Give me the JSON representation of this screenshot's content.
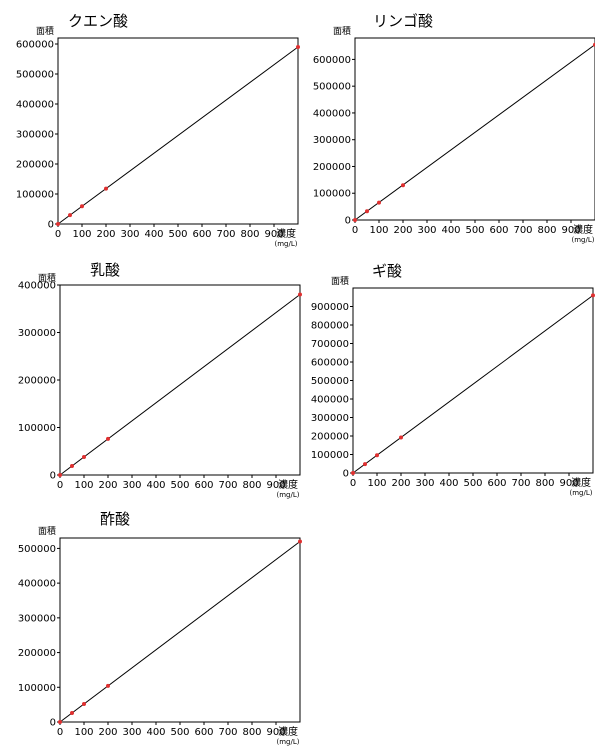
{
  "chart_data": [
    {
      "type": "scatter",
      "title": "クエン酸",
      "ylabel": "面積",
      "xlabel": "濃度",
      "xunit": "(mg/L)",
      "xlim": [
        0,
        1000
      ],
      "ylim": [
        0,
        620000
      ],
      "xticks": [
        0,
        100,
        200,
        300,
        400,
        500,
        600,
        700,
        800,
        900
      ],
      "yticks": [
        0,
        100000,
        200000,
        300000,
        400000,
        500000,
        600000
      ],
      "point_color": "#e03030",
      "line_color": "#000000",
      "series": [
        {
          "x": [
            0,
            50,
            100,
            200,
            1000
          ],
          "y": [
            0,
            29500,
            59000,
            118000,
            590000
          ]
        }
      ],
      "fit_line": {
        "x": [
          0,
          1000
        ],
        "y": [
          0,
          590000
        ]
      }
    },
    {
      "type": "scatter",
      "title": "リンゴ酸",
      "ylabel": "面積",
      "xlabel": "濃度",
      "xunit": "(mg/L)",
      "xlim": [
        0,
        1000
      ],
      "ylim": [
        0,
        680000
      ],
      "xticks": [
        0,
        100,
        200,
        300,
        400,
        500,
        600,
        700,
        800,
        900
      ],
      "yticks": [
        0,
        100000,
        200000,
        300000,
        400000,
        500000,
        600000
      ],
      "point_color": "#e03030",
      "line_color": "#000000",
      "series": [
        {
          "x": [
            0,
            50,
            100,
            200,
            1000
          ],
          "y": [
            0,
            32500,
            65000,
            130000,
            655000
          ]
        }
      ],
      "fit_line": {
        "x": [
          0,
          1000
        ],
        "y": [
          0,
          655000
        ]
      }
    },
    {
      "type": "scatter",
      "title": "乳酸",
      "ylabel": "面積",
      "xlabel": "濃度",
      "xunit": "(mg/L)",
      "xlim": [
        0,
        1000
      ],
      "ylim": [
        0,
        400000
      ],
      "xticks": [
        0,
        100,
        200,
        300,
        400,
        500,
        600,
        700,
        800,
        900
      ],
      "yticks": [
        0,
        100000,
        200000,
        300000,
        400000
      ],
      "point_color": "#e03030",
      "line_color": "#000000",
      "series": [
        {
          "x": [
            0,
            50,
            100,
            200,
            1000
          ],
          "y": [
            0,
            19000,
            38000,
            76000,
            380000
          ]
        }
      ],
      "fit_line": {
        "x": [
          0,
          1000
        ],
        "y": [
          0,
          380000
        ]
      }
    },
    {
      "type": "scatter",
      "title": "ギ酸",
      "ylabel": "面積",
      "xlabel": "濃度",
      "xunit": "(mg/L)",
      "xlim": [
        0,
        1000
      ],
      "ylim": [
        0,
        1000000
      ],
      "xticks": [
        0,
        100,
        200,
        300,
        400,
        500,
        600,
        700,
        800,
        900
      ],
      "yticks": [
        0,
        100000,
        200000,
        300000,
        400000,
        500000,
        600000,
        700000,
        800000,
        900000
      ],
      "point_color": "#e03030",
      "line_color": "#000000",
      "series": [
        {
          "x": [
            0,
            50,
            100,
            200,
            1000
          ],
          "y": [
            0,
            48000,
            96000,
            192000,
            960000
          ]
        }
      ],
      "fit_line": {
        "x": [
          0,
          1000
        ],
        "y": [
          0,
          960000
        ]
      }
    },
    {
      "type": "scatter",
      "title": "酢酸",
      "ylabel": "面積",
      "xlabel": "濃度",
      "xunit": "(mg/L)",
      "xlim": [
        0,
        1000
      ],
      "ylim": [
        0,
        530000
      ],
      "xticks": [
        0,
        100,
        200,
        300,
        400,
        500,
        600,
        700,
        800,
        900
      ],
      "yticks": [
        0,
        100000,
        200000,
        300000,
        400000,
        500000
      ],
      "point_color": "#e03030",
      "line_color": "#000000",
      "series": [
        {
          "x": [
            0,
            50,
            100,
            200,
            1000
          ],
          "y": [
            0,
            26000,
            52000,
            104000,
            520000
          ]
        }
      ],
      "fit_line": {
        "x": [
          0,
          1000
        ],
        "y": [
          0,
          520000
        ]
      }
    }
  ]
}
